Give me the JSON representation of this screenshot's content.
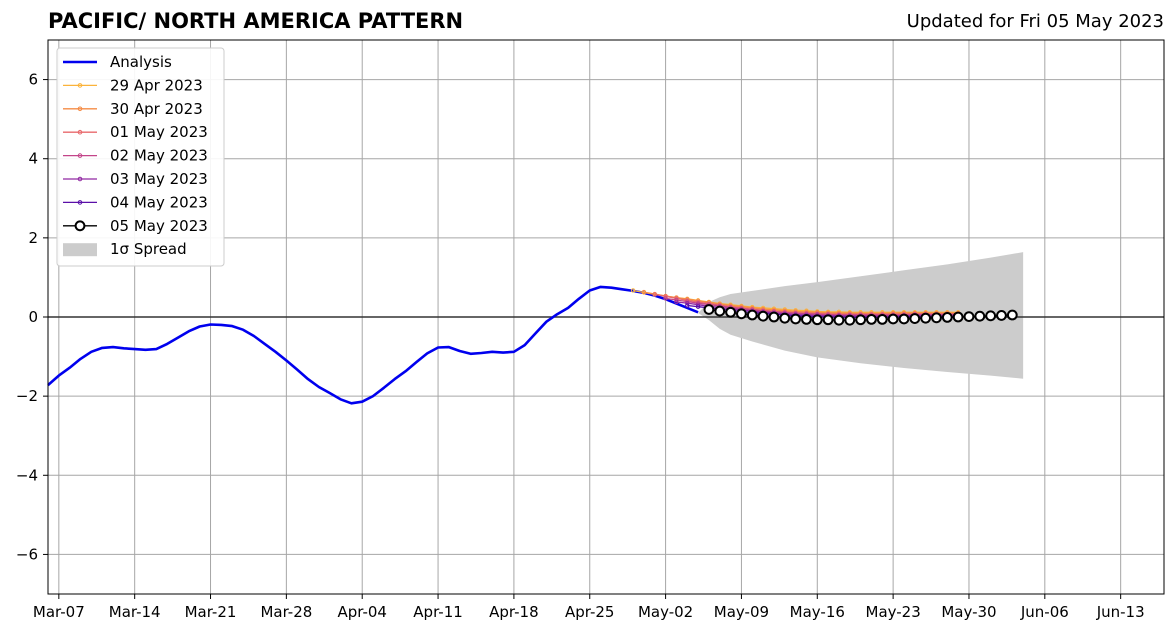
{
  "chart_data": {
    "type": "line",
    "title": "PACIFIC/ NORTH AMERICA PATTERN",
    "subtitle": "Updated for Fri 05 May 2023",
    "xlabel": "",
    "ylabel": "",
    "x_range": [
      "2023-03-06",
      "2023-06-17"
    ],
    "ylim": [
      -7,
      7
    ],
    "grid": true,
    "legend_position": "top-left",
    "x_ticks": [
      "2023-03-07",
      "2023-03-14",
      "2023-03-21",
      "2023-03-28",
      "2023-04-04",
      "2023-04-11",
      "2023-04-18",
      "2023-04-25",
      "2023-05-02",
      "2023-05-09",
      "2023-05-16",
      "2023-05-23",
      "2023-05-30",
      "2023-06-06",
      "2023-06-13"
    ],
    "x_tick_labels": [
      "Mar-07",
      "Mar-14",
      "Mar-21",
      "Mar-28",
      "Apr-04",
      "Apr-11",
      "Apr-18",
      "Apr-25",
      "May-02",
      "May-09",
      "May-16",
      "May-23",
      "May-30",
      "Jun-06",
      "Jun-13"
    ],
    "y_ticks": [
      -6,
      -4,
      -2,
      0,
      2,
      4,
      6
    ],
    "y_tick_labels": [
      "−6",
      "−4",
      "−2",
      "0",
      "2",
      "4",
      "6"
    ],
    "legend": [
      "Analysis",
      "29 Apr 2023",
      "30 Apr 2023",
      "01 May 2023",
      "02 May 2023",
      "03 May 2023",
      "04 May 2023",
      "05 May 2023",
      "1σ Spread"
    ],
    "series": [
      {
        "name": "Analysis",
        "color": "#0000ee",
        "style": "line",
        "start": "2023-03-06",
        "values": [
          -1.72,
          -1.48,
          -1.28,
          -1.06,
          -0.88,
          -0.78,
          -0.76,
          -0.79,
          -0.81,
          -0.83,
          -0.81,
          -0.68,
          -0.52,
          -0.36,
          -0.24,
          -0.19,
          -0.2,
          -0.23,
          -0.32,
          -0.48,
          -0.68,
          -0.88,
          -1.1,
          -1.33,
          -1.57,
          -1.77,
          -1.92,
          -2.08,
          -2.18,
          -2.14,
          -2.0,
          -1.79,
          -1.57,
          -1.37,
          -1.14,
          -0.92,
          -0.77,
          -0.76,
          -0.86,
          -0.93,
          -0.91,
          -0.88,
          -0.9,
          -0.88,
          -0.71,
          -0.41,
          -0.12,
          0.07,
          0.23,
          0.46,
          0.67,
          0.76,
          0.74,
          0.7,
          0.66,
          0.61,
          0.54,
          0.45,
          0.34,
          0.23,
          0.12
        ]
      },
      {
        "name": "29 Apr 2023",
        "color": "#fbb33b",
        "style": "marker-line",
        "start": "2023-04-29",
        "values": [
          0.67,
          0.62,
          0.57,
          0.53,
          0.49,
          0.46,
          0.42,
          0.38,
          0.34,
          0.31,
          0.28,
          0.25,
          0.23,
          0.21,
          0.19,
          0.17,
          0.16,
          0.14,
          0.13,
          0.13,
          0.12,
          0.12,
          0.12,
          0.12,
          0.12,
          0.12,
          0.12,
          0.12,
          0.12,
          0.12,
          0.12
        ]
      },
      {
        "name": "30 Apr 2023",
        "color": "#f58b45",
        "style": "marker-line",
        "start": "2023-04-30",
        "values": [
          0.63,
          0.58,
          0.53,
          0.49,
          0.45,
          0.41,
          0.37,
          0.33,
          0.29,
          0.26,
          0.23,
          0.2,
          0.18,
          0.16,
          0.14,
          0.13,
          0.12,
          0.11,
          0.1,
          0.1,
          0.09,
          0.09,
          0.09,
          0.1,
          0.1,
          0.1,
          0.1,
          0.1,
          0.1,
          0.1
        ]
      },
      {
        "name": "01 May 2023",
        "color": "#e8686b",
        "style": "marker-line",
        "start": "2023-05-01",
        "values": [
          0.57,
          0.52,
          0.47,
          0.42,
          0.38,
          0.34,
          0.3,
          0.26,
          0.23,
          0.2,
          0.17,
          0.15,
          0.13,
          0.11,
          0.1,
          0.09,
          0.08,
          0.07,
          0.07,
          0.07,
          0.07,
          0.07,
          0.07,
          0.07,
          0.08,
          0.08,
          0.08,
          0.08,
          0.08
        ]
      },
      {
        "name": "02 May 2023",
        "color": "#c34589",
        "style": "marker-line",
        "start": "2023-05-02",
        "values": [
          0.47,
          0.43,
          0.39,
          0.35,
          0.31,
          0.28,
          0.24,
          0.21,
          0.18,
          0.15,
          0.13,
          0.11,
          0.09,
          0.08,
          0.07,
          0.06,
          0.05,
          0.05,
          0.05,
          0.05,
          0.05,
          0.05,
          0.05,
          0.06,
          0.06,
          0.06,
          0.06,
          0.06
        ]
      },
      {
        "name": "03 May 2023",
        "color": "#9128a2",
        "style": "marker-line",
        "start": "2023-05-03",
        "values": [
          0.38,
          0.35,
          0.31,
          0.27,
          0.24,
          0.21,
          0.18,
          0.15,
          0.12,
          0.1,
          0.08,
          0.06,
          0.05,
          0.04,
          0.03,
          0.03,
          0.02,
          0.02,
          0.02,
          0.02,
          0.02,
          0.03,
          0.03,
          0.03,
          0.03,
          0.03,
          0.03
        ]
      },
      {
        "name": "04 May 2023",
        "color": "#5a0fa8",
        "style": "marker-line",
        "start": "2023-05-04",
        "values": [
          0.29,
          0.26,
          0.23,
          0.2,
          0.17,
          0.14,
          0.11,
          0.09,
          0.07,
          0.05,
          0.03,
          0.02,
          0.01,
          0.0,
          0.0,
          -0.01,
          -0.01,
          -0.01,
          -0.01,
          0.0,
          0.0,
          0.0,
          0.0,
          0.01,
          0.01,
          0.01
        ]
      },
      {
        "name": "05 May 2023",
        "color": "#000000",
        "style": "circle-line",
        "start": "2023-05-06",
        "values": [
          0.19,
          0.15,
          0.12,
          0.08,
          0.05,
          0.02,
          0.0,
          -0.03,
          -0.05,
          -0.06,
          -0.07,
          -0.07,
          -0.08,
          -0.08,
          -0.07,
          -0.06,
          -0.06,
          -0.05,
          -0.05,
          -0.04,
          -0.03,
          -0.02,
          -0.01,
          0.0,
          0.01,
          0.02,
          0.03,
          0.04,
          0.05
        ]
      }
    ],
    "spread": {
      "name": "1σ Spread",
      "color": "#cccccc",
      "x": [
        "2023-05-05",
        "2023-05-06",
        "2023-05-07",
        "2023-05-08",
        "2023-05-10",
        "2023-05-13",
        "2023-05-16",
        "2023-05-20",
        "2023-05-24",
        "2023-05-28",
        "2023-06-01",
        "2023-06-04"
      ],
      "upper": [
        0.1,
        0.38,
        0.5,
        0.58,
        0.66,
        0.78,
        0.88,
        1.03,
        1.18,
        1.33,
        1.5,
        1.64
      ],
      "lower": [
        0.1,
        -0.08,
        -0.3,
        -0.45,
        -0.62,
        -0.85,
        -1.02,
        -1.17,
        -1.29,
        -1.39,
        -1.48,
        -1.56
      ]
    }
  }
}
